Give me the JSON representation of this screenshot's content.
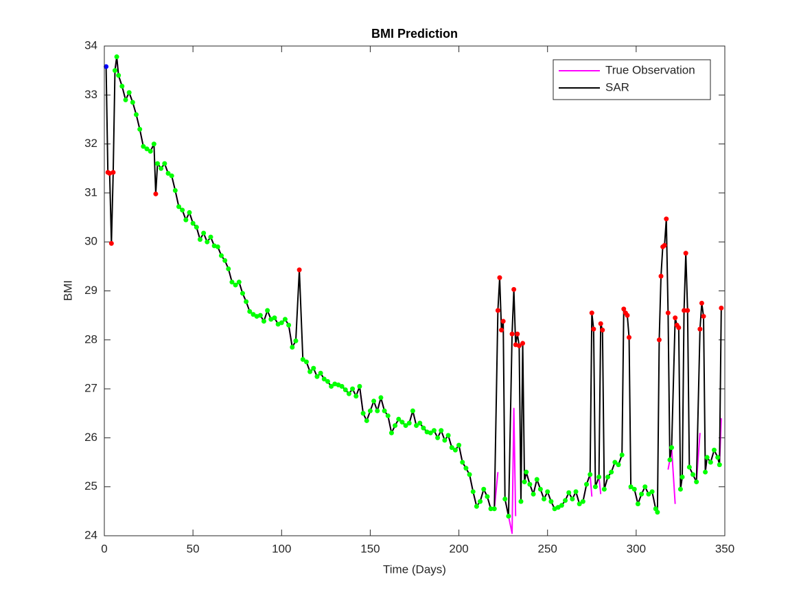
{
  "chart_data": {
    "type": "line",
    "title": "BMI Prediction",
    "xlabel": "Time (Days)",
    "ylabel": "BMI",
    "xlim": [
      0,
      350
    ],
    "xticks": [
      0,
      50,
      100,
      150,
      200,
      250,
      300,
      350
    ],
    "ylim": [
      24,
      34
    ],
    "yticks": [
      24,
      25,
      26,
      27,
      28,
      29,
      30,
      31,
      32,
      33,
      34
    ],
    "legend": "northeast",
    "x": [
      1,
      2,
      3,
      4,
      5,
      6,
      7,
      8,
      10,
      12,
      14,
      16,
      18,
      20,
      22,
      24,
      26,
      28,
      29,
      30,
      32,
      34,
      36,
      38,
      40,
      42,
      44,
      46,
      48,
      50,
      52,
      54,
      56,
      58,
      60,
      62,
      64,
      66,
      68,
      70,
      72,
      74,
      76,
      78,
      80,
      82,
      84,
      86,
      88,
      90,
      92,
      94,
      96,
      98,
      100,
      102,
      104,
      106,
      108,
      110,
      112,
      114,
      116,
      118,
      120,
      122,
      124,
      126,
      128,
      130,
      132,
      134,
      136,
      138,
      140,
      142,
      144,
      146,
      148,
      150,
      152,
      154,
      156,
      158,
      160,
      162,
      164,
      166,
      168,
      170,
      172,
      174,
      176,
      178,
      180,
      182,
      184,
      186,
      188,
      190,
      192,
      194,
      196,
      198,
      200,
      202,
      204,
      206,
      208,
      210,
      212,
      214,
      216,
      218,
      220,
      222,
      223,
      224,
      225,
      226,
      228,
      230,
      231,
      232,
      233,
      234,
      235,
      236,
      237,
      238,
      240,
      242,
      244,
      246,
      248,
      250,
      252,
      254,
      256,
      258,
      260,
      262,
      264,
      266,
      268,
      270,
      272,
      274,
      275,
      276,
      277,
      279,
      280,
      281,
      282,
      284,
      286,
      288,
      290,
      292,
      293,
      294,
      295,
      296,
      297,
      299,
      301,
      303,
      305,
      307,
      309,
      311,
      312,
      313,
      314,
      315,
      316,
      317,
      318,
      319,
      320,
      322,
      323,
      324,
      325,
      326,
      327,
      328,
      329,
      330,
      332,
      334,
      336,
      337,
      338,
      339,
      340,
      342,
      344,
      346,
      347,
      348
    ],
    "series": [
      {
        "name": "True Observation",
        "color": "#ff00ff",
        "values": [
          33.5,
          null,
          null,
          null,
          null,
          33.5,
          33.78,
          33.4,
          33.18,
          32.9,
          33.05,
          32.85,
          32.6,
          32.3,
          31.95,
          31.9,
          31.85,
          32.0,
          null,
          31.6,
          31.5,
          31.6,
          31.4,
          31.35,
          31.05,
          30.72,
          30.65,
          30.45,
          30.6,
          30.38,
          30.3,
          30.05,
          30.18,
          30.0,
          30.1,
          29.92,
          29.9,
          29.72,
          29.62,
          29.45,
          29.18,
          29.12,
          29.18,
          28.95,
          28.78,
          28.58,
          28.52,
          28.48,
          28.5,
          28.38,
          28.6,
          28.42,
          28.45,
          28.32,
          28.35,
          28.42,
          28.3,
          27.85,
          27.98,
          null,
          27.6,
          27.55,
          27.35,
          27.42,
          27.25,
          27.32,
          27.2,
          27.15,
          27.05,
          27.1,
          27.08,
          27.05,
          26.98,
          26.9,
          27.0,
          26.85,
          27.05,
          26.5,
          26.35,
          26.55,
          26.75,
          26.55,
          26.82,
          26.55,
          26.45,
          26.1,
          26.25,
          26.38,
          26.32,
          26.25,
          26.3,
          26.55,
          26.25,
          26.3,
          26.2,
          26.12,
          26.1,
          26.15,
          26.0,
          26.15,
          25.95,
          26.05,
          25.8,
          25.75,
          25.85,
          25.5,
          25.38,
          25.25,
          24.9,
          24.6,
          24.7,
          24.95,
          24.8,
          24.55,
          24.55,
          25.3,
          null,
          null,
          null,
          24.75,
          24.4,
          24.05,
          26.6,
          24.4,
          null,
          null,
          24.7,
          null,
          25.1,
          25.3,
          25.05,
          24.85,
          25.15,
          24.95,
          24.75,
          24.9,
          24.7,
          24.55,
          24.58,
          24.62,
          24.72,
          24.88,
          24.75,
          24.9,
          24.65,
          24.7,
          25.05,
          25.25,
          24.8,
          null,
          25.0,
          25.2,
          24.85,
          null,
          24.95,
          25.2,
          25.3,
          25.5,
          25.45,
          25.65,
          null,
          null,
          null,
          24.95,
          25.0,
          24.95,
          24.65,
          24.85,
          25.0,
          24.85,
          24.9,
          24.55,
          24.48,
          null,
          null,
          null,
          null,
          null,
          25.35,
          25.55,
          25.8,
          24.65,
          null,
          null,
          24.95,
          25.2,
          null,
          25.7,
          null,
          25.4,
          25.25,
          25.1,
          26.1,
          null,
          null,
          25.3,
          25.6,
          25.5,
          25.75,
          25.6,
          25.45,
          26.4
        ]
      },
      {
        "name": "SAR",
        "color": "#000000",
        "values": [
          33.58,
          31.42,
          31.4,
          29.97,
          31.42,
          33.5,
          33.78,
          33.4,
          33.18,
          32.9,
          33.05,
          32.85,
          32.6,
          32.3,
          31.95,
          31.9,
          31.85,
          32.0,
          30.98,
          31.6,
          31.5,
          31.6,
          31.4,
          31.35,
          31.05,
          30.72,
          30.65,
          30.45,
          30.6,
          30.38,
          30.3,
          30.05,
          30.18,
          30.0,
          30.1,
          29.92,
          29.9,
          29.72,
          29.62,
          29.45,
          29.18,
          29.12,
          29.18,
          28.95,
          28.78,
          28.58,
          28.52,
          28.48,
          28.5,
          28.38,
          28.6,
          28.42,
          28.45,
          28.32,
          28.35,
          28.42,
          28.3,
          27.85,
          27.98,
          29.43,
          27.6,
          27.55,
          27.35,
          27.42,
          27.25,
          27.32,
          27.2,
          27.15,
          27.05,
          27.1,
          27.08,
          27.05,
          26.98,
          26.9,
          27.0,
          26.85,
          27.05,
          26.5,
          26.35,
          26.55,
          26.75,
          26.55,
          26.82,
          26.55,
          26.45,
          26.1,
          26.25,
          26.38,
          26.32,
          26.25,
          26.3,
          26.55,
          26.25,
          26.3,
          26.2,
          26.12,
          26.1,
          26.15,
          26.0,
          26.15,
          25.95,
          26.05,
          25.8,
          25.75,
          25.85,
          25.5,
          25.38,
          25.25,
          24.9,
          24.6,
          24.7,
          24.95,
          24.8,
          24.55,
          24.55,
          28.6,
          29.27,
          28.2,
          28.38,
          24.75,
          24.4,
          28.12,
          29.03,
          27.9,
          28.12,
          27.88,
          24.7,
          27.93,
          25.1,
          25.3,
          25.05,
          24.85,
          25.15,
          24.95,
          24.75,
          24.9,
          24.7,
          24.55,
          24.58,
          24.62,
          24.72,
          24.88,
          24.75,
          24.9,
          24.65,
          24.7,
          25.05,
          25.25,
          28.55,
          28.22,
          25.0,
          25.2,
          28.33,
          28.2,
          24.95,
          25.2,
          25.3,
          25.5,
          25.45,
          25.65,
          28.63,
          28.55,
          28.5,
          28.05,
          25.0,
          24.95,
          24.65,
          24.85,
          25.0,
          24.85,
          24.9,
          24.55,
          24.48,
          28.0,
          29.3,
          29.9,
          29.93,
          30.47,
          28.55,
          25.55,
          25.8,
          28.45,
          28.3,
          28.25,
          24.95,
          25.2,
          28.6,
          29.77,
          28.6,
          25.4,
          25.25,
          25.1,
          28.22,
          28.75,
          28.48,
          25.3,
          25.6,
          25.5,
          25.75,
          25.6,
          25.45,
          28.65
        ],
        "marker_colors": [
          "blue",
          "red",
          "red",
          "red",
          "red",
          "lime",
          "lime",
          "lime",
          "lime",
          "lime",
          "lime",
          "lime",
          "lime",
          "lime",
          "lime",
          "lime",
          "lime",
          "lime",
          "red",
          "lime",
          "lime",
          "lime",
          "lime",
          "lime",
          "lime",
          "lime",
          "lime",
          "lime",
          "lime",
          "lime",
          "lime",
          "lime",
          "lime",
          "lime",
          "lime",
          "lime",
          "lime",
          "lime",
          "lime",
          "lime",
          "lime",
          "lime",
          "lime",
          "lime",
          "lime",
          "lime",
          "lime",
          "lime",
          "lime",
          "lime",
          "lime",
          "lime",
          "lime",
          "lime",
          "lime",
          "lime",
          "lime",
          "lime",
          "lime",
          "red",
          "lime",
          "lime",
          "lime",
          "lime",
          "lime",
          "lime",
          "lime",
          "lime",
          "lime",
          "lime",
          "lime",
          "lime",
          "lime",
          "lime",
          "lime",
          "lime",
          "lime",
          "lime",
          "lime",
          "lime",
          "lime",
          "lime",
          "lime",
          "lime",
          "lime",
          "lime",
          "lime",
          "lime",
          "lime",
          "lime",
          "lime",
          "lime",
          "lime",
          "lime",
          "lime",
          "lime",
          "lime",
          "lime",
          "lime",
          "lime",
          "lime",
          "lime",
          "lime",
          "lime",
          "lime",
          "lime",
          "lime",
          "lime",
          "lime",
          "lime",
          "lime",
          "lime",
          "lime",
          "lime",
          "lime",
          "red",
          "red",
          "red",
          "red",
          "lime",
          "lime",
          "red",
          "red",
          "red",
          "red",
          "red",
          "lime",
          "red",
          "lime",
          "lime",
          "lime",
          "lime",
          "lime",
          "lime",
          "lime",
          "lime",
          "lime",
          "lime",
          "lime",
          "lime",
          "lime",
          "lime",
          "lime",
          "lime",
          "lime",
          "lime",
          "lime",
          "lime",
          "red",
          "red",
          "lime",
          "lime",
          "red",
          "red",
          "lime",
          "lime",
          "lime",
          "lime",
          "lime",
          "lime",
          "red",
          "red",
          "red",
          "red",
          "lime",
          "lime",
          "lime",
          "lime",
          "lime",
          "lime",
          "lime",
          "lime",
          "lime",
          "red",
          "red",
          "red",
          "red",
          "red",
          "red",
          "lime",
          "lime",
          "red",
          "red",
          "red",
          "lime",
          "lime",
          "red",
          "red",
          "red",
          "lime",
          "lime",
          "lime",
          "red",
          "red",
          "red",
          "lime",
          "lime",
          "lime",
          "lime",
          "lime",
          "lime",
          "red"
        ]
      }
    ]
  }
}
